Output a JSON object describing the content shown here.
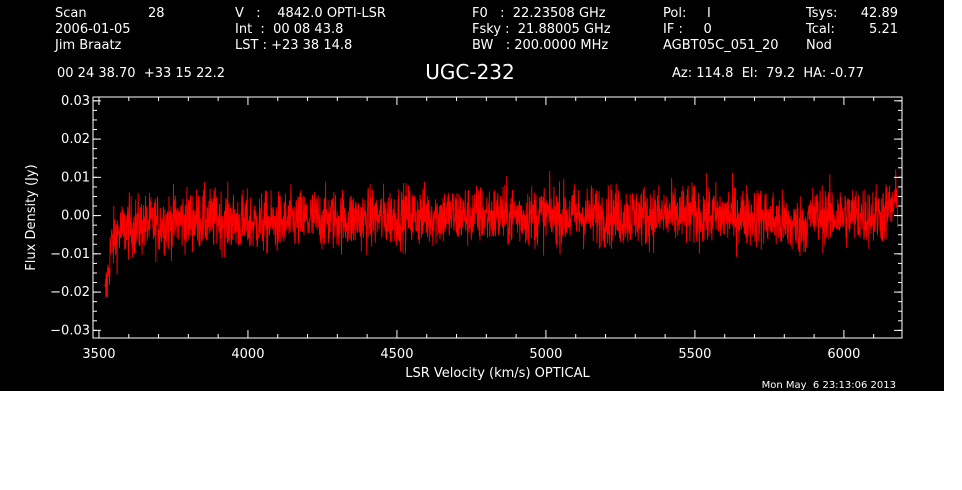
{
  "header": {
    "col1": {
      "scan_label": "Scan",
      "scan_value": "28",
      "date": "2006-01-05",
      "observer": "Jim Braatz"
    },
    "col2": {
      "v_line": "V   :    4842.0 OPTI-LSR",
      "int_line": "Int  :  00 08 43.8",
      "lst_line": "LST : +23 38 14.8"
    },
    "col3": {
      "f0_line": "F0   :  22.23508 GHz",
      "fsky_line": "Fsky :  21.88005 GHz",
      "bw_line": "BW   : 200.0000 MHz"
    },
    "col4": {
      "pol_line": "Pol:     I",
      "if_line": "IF :     0",
      "proj_line": "AGBT05C_051_20"
    },
    "col5": {
      "tsys_label": "Tsys:",
      "tsys_value": "42.89",
      "tcal_label": "Tcal:",
      "tcal_value": "5.21",
      "mode": "Nod"
    },
    "coords": "00 24 38.70  +33 15 22.2",
    "source": "UGC-232",
    "pointing": "Az: 114.8  El:  79.2  HA: -0.77"
  },
  "timestamp": "Mon May  6 23:13:06 2013",
  "chart_data": {
    "type": "line",
    "title": "UGC-232",
    "xlabel": "LSR Velocity (km/s) OPTICAL",
    "ylabel": "Flux Density (Jy)",
    "xlim": [
      3480,
      6195
    ],
    "ylim": [
      -0.032,
      0.031
    ],
    "x_ticks": [
      3500,
      4000,
      4500,
      5000,
      5500,
      6000
    ],
    "y_ticks": [
      -0.03,
      -0.02,
      -0.01,
      0.0,
      0.01,
      0.02,
      0.03
    ],
    "y_tick_labels": [
      "−0.03",
      "−0.02",
      "−0.01",
      "0.00",
      "0.01",
      "0.02",
      "0.03"
    ],
    "grid": false,
    "series": [
      {
        "color": "#ff0000",
        "x_start": 3520,
        "x_end": 6180,
        "noise_rms": 0.0065,
        "x": [
          3520,
          3530,
          3540,
          3560,
          3600,
          3700,
          3800,
          3900,
          4000,
          4100,
          4200,
          4300,
          4400,
          4500,
          4600,
          4700,
          4800,
          4900,
          5000,
          5100,
          5200,
          5300,
          5400,
          5500,
          5600,
          5700,
          5800,
          5850,
          5900,
          6000,
          6100,
          6150,
          6180
        ],
        "values": [
          -0.022,
          -0.016,
          -0.008,
          -0.005,
          -0.003,
          -0.002,
          -0.001,
          -0.001,
          -0.002,
          -0.002,
          -0.001,
          -0.001,
          -0.001,
          0.0,
          0.0,
          0.0,
          0.0,
          0.0,
          0.0,
          0.0,
          0.0,
          0.0,
          0.0,
          0.0,
          0.0,
          0.0,
          -0.002,
          -0.003,
          0.0,
          0.0,
          0.0,
          0.001,
          0.004
        ]
      }
    ]
  }
}
